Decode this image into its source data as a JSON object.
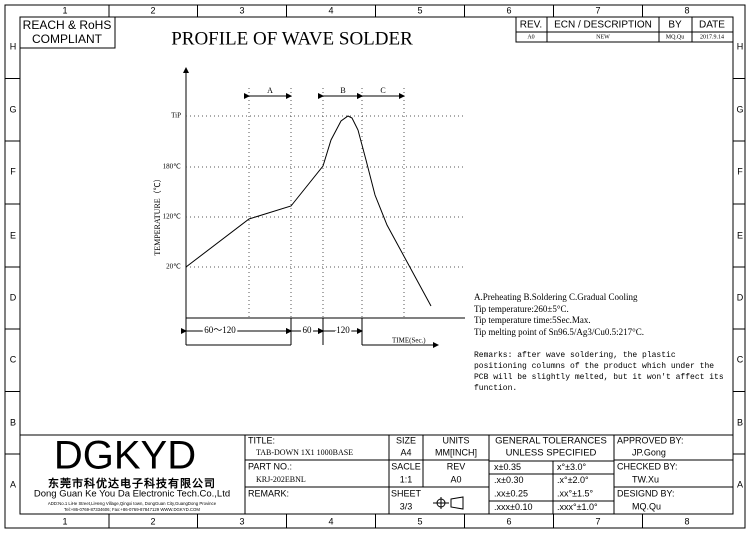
{
  "border": {
    "columns": [
      "1",
      "2",
      "3",
      "4",
      "5",
      "6",
      "7",
      "8"
    ],
    "rows": [
      "H",
      "G",
      "F",
      "E",
      "D",
      "C",
      "B",
      "A"
    ]
  },
  "compliance": [
    "REACH & RoHS",
    "COMPLIANT"
  ],
  "title": "PROFILE OF WAVE SOLDER",
  "revision_table": {
    "headers": [
      "REV.",
      "ECN / DESCRIPTION",
      "BY",
      "DATE"
    ],
    "row": [
      "A0",
      "NEW",
      "MQ.Qu",
      "2017.9.14"
    ]
  },
  "profile": {
    "y_axis_title": "TEMPERATURE（℃）",
    "y_labels": [
      "TiP",
      "180℃",
      "120℃",
      "20℃"
    ],
    "zones": [
      "A",
      "B",
      "C"
    ],
    "durations": [
      "60～120",
      "60",
      "120"
    ],
    "x_axis_title": "TIME(Sec.)"
  },
  "notes": [
    "A.Preheating  B.Soldering  C.Gradual Cooling",
    "Tip temperature:260±5°C.",
    "Tip temperature time:5Sec.Max.",
    "Tip melting point of Sn96.5/Ag3/Cu0.5:217°C."
  ],
  "remarks": [
    "Remarks: after wave soldering, the plastic",
    "positioning columns of the product  which under the",
    "PCB will be slightly melted, but it won't affect its",
    "function."
  ],
  "title_block": {
    "logo": "DGKYD",
    "company_cn": "东莞市科优达电子科技有限公司",
    "company_en": "Dong Guan Ke You Da Electronic Tech.Co.,Ltd",
    "address": "ADD:No.1 LiHe Street,LiHeng Village,Qingxi town, DongGuan City,GuangDong Province",
    "contact": "Tel:+86-0769-87334606; Fax:+86-0769-87847129 WWW.DGKYD.COM",
    "title_label": "TITLE:",
    "title_value": "TAB-DOWN 1X1 1000BASE",
    "part_label": "PART NO.:",
    "part_value": "KRJ-202EBNL",
    "remark_label": "REMARK:",
    "size_label": "SIZE",
    "size_value": "A4",
    "units_label": "UNITS",
    "units_value": "MM[INCH]",
    "scale_label": "SACLE",
    "scale_value": "1:1",
    "rev_label": "REV",
    "rev_value": "A0",
    "sheet_label": "SHEET",
    "sheet_value": "3/3",
    "tolerances_title": [
      "GENERAL TOLERANCES",
      "UNLESS SPECIFIED"
    ],
    "tolerances": [
      [
        "x±0.35",
        "x°±3.0°"
      ],
      [
        ".x±0.30",
        ".x°±2.0°"
      ],
      [
        ".xx±0.25",
        ".xx°±1.5°"
      ],
      [
        ".xxx±0.10",
        ".xxx°±1.0°"
      ]
    ],
    "approved_label": "APPROVED BY:",
    "approved_value": "JP.Gong",
    "checked_label": "CHECKED BY:",
    "checked_value": "TW.Xu",
    "designed_label": "DESIGND BY:",
    "designed_value": "MQ.Qu"
  }
}
